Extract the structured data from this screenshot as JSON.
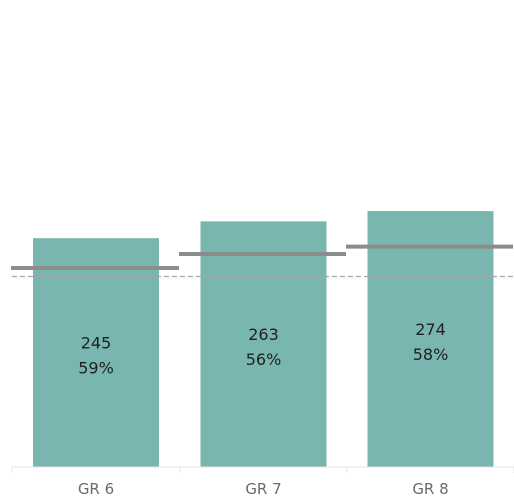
{
  "chart_data": {
    "type": "bar",
    "categories": [
      "GR 6",
      "GR 7",
      "GR 8"
    ],
    "values": [
      245,
      263,
      274
    ],
    "value_labels": [
      "245",
      "263",
      "274"
    ],
    "percent_labels": [
      "59%",
      "56%",
      "58%"
    ],
    "reference_marks": [
      213,
      228,
      236
    ],
    "reference_line": 204,
    "ylim": [
      0,
      500
    ],
    "grid": false,
    "colors": {
      "bar": "#79b6af",
      "reference_mark": "#8c8c8c",
      "reference_line": "#a6a6a6",
      "axis": "#e3e3e3"
    }
  }
}
